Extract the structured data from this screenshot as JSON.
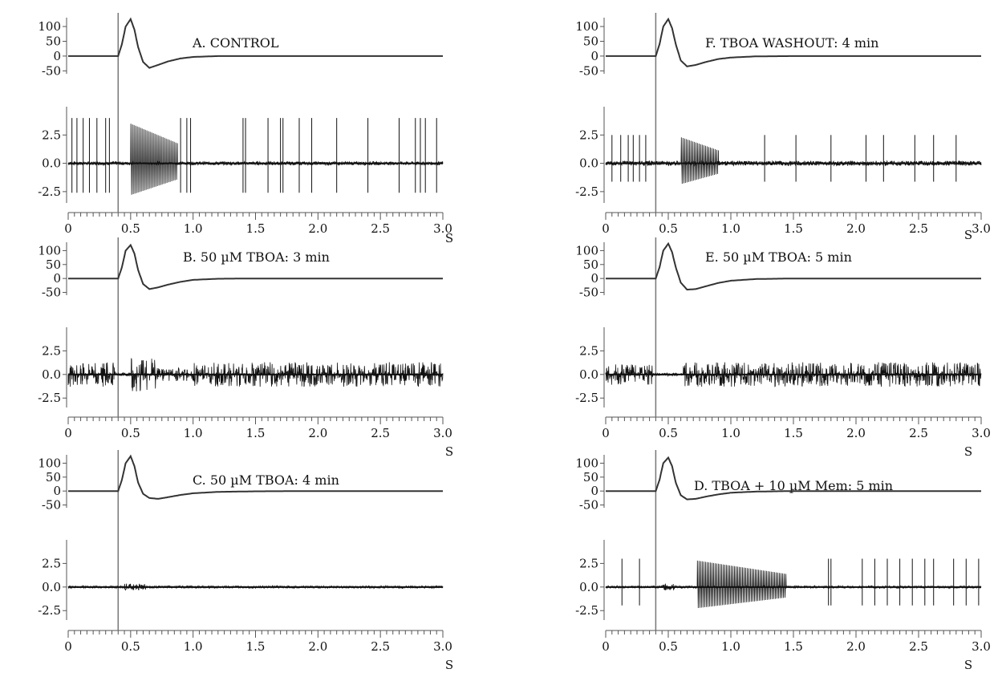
{
  "chart_data": [
    {
      "id": "A",
      "type": "line",
      "title": "A. CONTROL",
      "xlabel": "S",
      "xlim": [
        0,
        3.0
      ],
      "x_ticks": [
        "0",
        "0.5",
        "1.0",
        "1.5",
        "2.0",
        "2.5",
        "3.0"
      ],
      "stim_time": 0.4,
      "upper": {
        "ylim": [
          -60,
          130
        ],
        "y_ticks": [
          "100",
          "50",
          "0",
          "-50"
        ],
        "x": [
          0,
          0.4,
          0.43,
          0.46,
          0.5,
          0.53,
          0.56,
          0.6,
          0.65,
          0.72,
          0.8,
          0.9,
          1.0,
          1.2,
          1.5,
          2.0,
          3.0
        ],
        "y": [
          0,
          0,
          40,
          100,
          125,
          90,
          30,
          -20,
          -40,
          -30,
          -18,
          -8,
          -3,
          0,
          0,
          0,
          0
        ]
      },
      "lower": {
        "ylim": [
          -3.5,
          5
        ],
        "y_ticks": [
          "2.5",
          "0.0",
          "-2.5"
        ],
        "spike_times": [
          0.03,
          0.07,
          0.12,
          0.17,
          0.23,
          0.3,
          0.33,
          0.9,
          0.95,
          0.98,
          1.4,
          1.42,
          1.6,
          1.7,
          1.72,
          1.85,
          1.95,
          2.15,
          2.4,
          2.65,
          2.78,
          2.82,
          2.86,
          2.95
        ],
        "spike_amp": 4.0,
        "burst": [
          0.5,
          0.88
        ],
        "burst_amp": 3.5,
        "noise": 0.15
      }
    },
    {
      "id": "B",
      "type": "line",
      "title": "B. 50 µM TBOA: 3 min",
      "xlabel": "S",
      "xlim": [
        0,
        3.0
      ],
      "x_ticks": [
        "0",
        "0.5",
        "1.0",
        "1.5",
        "2.0",
        "2.5",
        "3.0"
      ],
      "stim_time": 0.4,
      "upper": {
        "ylim": [
          -60,
          130
        ],
        "y_ticks": [
          "100",
          "50",
          "0",
          "-50"
        ],
        "x": [
          0,
          0.4,
          0.43,
          0.46,
          0.5,
          0.53,
          0.56,
          0.6,
          0.65,
          0.72,
          0.8,
          0.9,
          1.0,
          1.2,
          1.5,
          2.0,
          3.0
        ],
        "y": [
          0,
          0,
          40,
          100,
          120,
          90,
          30,
          -20,
          -38,
          -32,
          -22,
          -12,
          -5,
          -1,
          0,
          0,
          0
        ]
      },
      "lower": {
        "ylim": [
          -3.5,
          5
        ],
        "y_ticks": [
          "2.5",
          "0.0",
          "-2.5"
        ],
        "spike_times": [],
        "spike_amp": 0,
        "dense": [
          [
            0,
            0.38,
            1.3
          ],
          [
            0.5,
            0.7,
            1.8
          ],
          [
            0.7,
            1.0,
            0.7
          ],
          [
            1.0,
            3.0,
            1.3
          ]
        ],
        "noise": 0.15
      }
    },
    {
      "id": "C",
      "type": "line",
      "title": "C. 50 µM TBOA: 4 min",
      "xlabel": "S",
      "xlim": [
        0,
        3.0
      ],
      "x_ticks": [
        "0",
        "0.5",
        "1.0",
        "1.5",
        "2.0",
        "2.5",
        "3.0"
      ],
      "stim_time": 0.4,
      "upper": {
        "ylim": [
          -60,
          130
        ],
        "y_ticks": [
          "100",
          "50",
          "0",
          "-50"
        ],
        "x": [
          0,
          0.4,
          0.43,
          0.46,
          0.5,
          0.53,
          0.56,
          0.6,
          0.65,
          0.72,
          0.8,
          0.9,
          1.0,
          1.2,
          1.5,
          2.0,
          3.0
        ],
        "y": [
          0,
          0,
          40,
          100,
          125,
          90,
          30,
          -10,
          -25,
          -28,
          -22,
          -14,
          -8,
          -3,
          -1,
          0,
          0
        ]
      },
      "lower": {
        "ylim": [
          -3.5,
          5
        ],
        "y_ticks": [
          "2.5",
          "0.0",
          "-2.5"
        ],
        "spike_times": [],
        "spike_amp": 0,
        "small_burst": [
          0.45,
          0.62
        ],
        "noise": 0.12
      }
    },
    {
      "id": "F",
      "type": "line",
      "title": "F. TBOA WASHOUT: 4 min",
      "xlabel": "S",
      "xlim": [
        0,
        3.0
      ],
      "x_ticks": [
        "0",
        "0.5",
        "1.0",
        "1.5",
        "2.0",
        "2.5",
        "3.0"
      ],
      "stim_time": 0.4,
      "upper": {
        "ylim": [
          -60,
          130
        ],
        "y_ticks": [
          "100",
          "50",
          "0",
          "-50"
        ],
        "x": [
          0,
          0.4,
          0.43,
          0.46,
          0.5,
          0.53,
          0.56,
          0.6,
          0.65,
          0.72,
          0.8,
          0.9,
          1.0,
          1.2,
          1.5,
          2.0,
          3.0
        ],
        "y": [
          0,
          0,
          40,
          100,
          125,
          95,
          40,
          -15,
          -35,
          -30,
          -20,
          -10,
          -5,
          -1,
          0,
          0,
          0
        ]
      },
      "lower": {
        "ylim": [
          -3.5,
          5
        ],
        "y_ticks": [
          "2.5",
          "0.0",
          "-2.5"
        ],
        "spike_times": [
          0.05,
          0.12,
          0.18,
          0.22,
          0.27,
          0.32,
          1.27,
          1.52,
          1.8,
          2.08,
          2.22,
          2.47,
          2.62,
          2.8
        ],
        "spike_amp": 2.5,
        "burst": [
          0.6,
          0.9
        ],
        "burst_amp": 2.3,
        "noise": 0.2
      }
    },
    {
      "id": "E",
      "type": "line",
      "title": "E. 50 µM TBOA: 5 min",
      "xlabel": "S",
      "xlim": [
        0,
        3.0
      ],
      "x_ticks": [
        "0",
        "0.5",
        "1.0",
        "1.5",
        "2.0",
        "2.5",
        "3.0"
      ],
      "stim_time": 0.4,
      "upper": {
        "ylim": [
          -60,
          130
        ],
        "y_ticks": [
          "100",
          "50",
          "0",
          "-50"
        ],
        "x": [
          0,
          0.4,
          0.43,
          0.46,
          0.5,
          0.53,
          0.56,
          0.6,
          0.65,
          0.72,
          0.8,
          0.9,
          1.0,
          1.2,
          1.5,
          2.0,
          3.0
        ],
        "y": [
          0,
          0,
          40,
          100,
          125,
          95,
          40,
          -15,
          -40,
          -38,
          -28,
          -16,
          -8,
          -2,
          0,
          0,
          0
        ]
      },
      "lower": {
        "ylim": [
          -3.5,
          5
        ],
        "y_ticks": [
          "2.5",
          "0.0",
          "-2.5"
        ],
        "spike_times": [],
        "spike_amp": 0,
        "dense": [
          [
            0,
            0.38,
            1.1
          ],
          [
            0.62,
            3.0,
            1.3
          ]
        ],
        "noise": 0.15
      }
    },
    {
      "id": "D",
      "type": "line",
      "title": "D. TBOA + 10 µM Mem: 5 min",
      "xlabel": "S",
      "xlim": [
        0,
        3.0
      ],
      "x_ticks": [
        "0",
        "0.5",
        "1.0",
        "1.5",
        "2.0",
        "2.5",
        "3.0"
      ],
      "stim_time": 0.4,
      "upper": {
        "ylim": [
          -60,
          130
        ],
        "y_ticks": [
          "100",
          "50",
          "0",
          "-50"
        ],
        "x": [
          0,
          0.4,
          0.43,
          0.46,
          0.5,
          0.53,
          0.56,
          0.6,
          0.65,
          0.72,
          0.8,
          0.9,
          1.0,
          1.2,
          1.5,
          2.0,
          3.0
        ],
        "y": [
          0,
          0,
          40,
          100,
          120,
          90,
          30,
          -15,
          -30,
          -28,
          -20,
          -12,
          -6,
          -2,
          0,
          0,
          0
        ]
      },
      "lower": {
        "ylim": [
          -3.5,
          5
        ],
        "y_ticks": [
          "2.5",
          "0.0",
          "-2.5"
        ],
        "spike_times": [
          0.13,
          0.27,
          1.78,
          1.8,
          2.05,
          2.15,
          2.25,
          2.35,
          2.45,
          2.55,
          2.62,
          2.78,
          2.88,
          2.98
        ],
        "spike_amp": 3.0,
        "burst": [
          0.73,
          1.44
        ],
        "burst_amp": 2.8,
        "small_burst": [
          0.45,
          0.55
        ],
        "noise": 0.12
      }
    }
  ]
}
